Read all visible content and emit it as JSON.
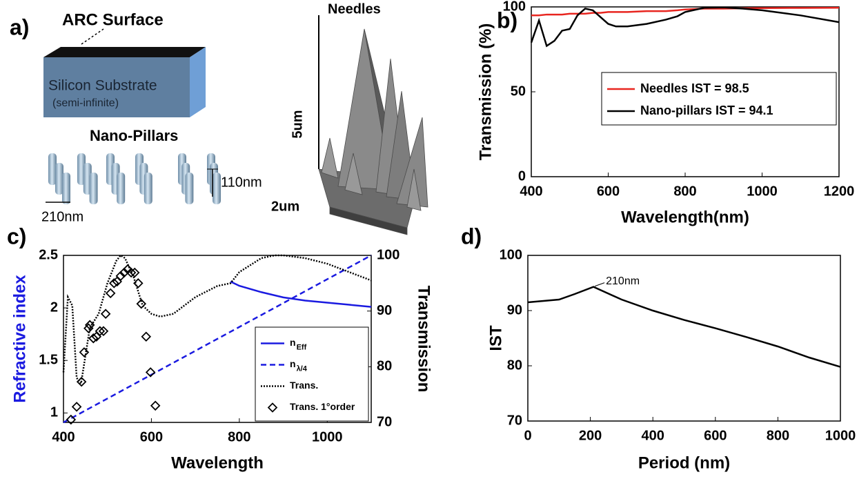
{
  "diagram": {
    "panel_label": "a)",
    "arc": "ARC Surface",
    "substrate": "Silicon Substrate",
    "substrate_note": "(semi-infinite)",
    "pillars": "Nano-Pillars",
    "pillar_height": "110nm",
    "pillar_period": "210nm",
    "needles": "Needles",
    "needle_height": "5um",
    "needle_base": "2um"
  },
  "chart_data": [
    {
      "type": "line",
      "panel_label": "b)",
      "xlabel": "Wavelength(nm)",
      "ylabel": "Transmission (%)",
      "xlim": [
        400,
        1200
      ],
      "xticks": [
        400,
        600,
        800,
        1000,
        1200
      ],
      "ylim": [
        0,
        100
      ],
      "yticks": [
        0,
        50,
        100
      ],
      "legend": "right",
      "x": [
        400,
        420,
        440,
        460,
        480,
        500,
        520,
        540,
        560,
        580,
        600,
        620,
        650,
        700,
        750,
        780,
        800,
        850,
        900,
        950,
        1000,
        1100,
        1200
      ],
      "series": [
        {
          "name": "Needles IST = 98.5",
          "color": "#e8251f",
          "values": [
            95,
            95,
            95.5,
            95.5,
            95.5,
            96,
            96,
            96,
            96.5,
            96.5,
            97,
            97,
            97,
            97.5,
            97.5,
            98,
            98.5,
            99,
            99,
            99.2,
            99.3,
            99.4,
            99.5
          ]
        },
        {
          "name": "Nano-pillars IST = 94.1",
          "color": "#000000",
          "values": [
            79,
            92,
            77,
            80,
            86,
            87,
            95,
            99,
            98,
            94,
            90,
            88.5,
            88.5,
            90,
            92.5,
            94.5,
            97,
            99.5,
            99.7,
            99,
            98,
            95,
            91
          ]
        }
      ]
    },
    {
      "type": "line",
      "panel_label": "c)",
      "xlabel": "Wavelength",
      "ylabel": "Refractive index",
      "ylabel_color": "#1a1ae0",
      "y2label": "Transmission",
      "xlim": [
        400,
        1100
      ],
      "xticks": [
        400,
        600,
        800,
        1000
      ],
      "ylim": [
        0.91,
        2.5
      ],
      "yticks": [
        1,
        1.5,
        2,
        2.5
      ],
      "y2lim": [
        70,
        100
      ],
      "y2ticks": [
        70,
        80,
        90,
        100
      ],
      "legend": "lower right",
      "series": [
        {
          "name": "n",
          "name_sub": "Eff",
          "color": "#1a1ae0",
          "dash": "solid",
          "x": [
            780,
            800,
            850,
            900,
            950,
            1000,
            1050,
            1100
          ],
          "values": [
            2.25,
            2.21,
            2.15,
            2.1,
            2.07,
            2.05,
            2.03,
            2.01
          ]
        },
        {
          "name": "n",
          "name_sub": "λ/4",
          "color": "#1a1ae0",
          "dash": "dashed",
          "x": [
            400,
            1100
          ],
          "values": [
            0.91,
            2.5
          ]
        },
        {
          "name": "Trans.",
          "color": "#000000",
          "dash": "dotted",
          "axis": "y2",
          "x": [
            400,
            410,
            420,
            430,
            440,
            460,
            480,
            500,
            520,
            530,
            540,
            560,
            580,
            600,
            620,
            650,
            700,
            750,
            780,
            800,
            850,
            880,
            900,
            950,
            1000,
            1050,
            1100
          ],
          "values": [
            79,
            92.5,
            91,
            78,
            77,
            87,
            89.5,
            95,
            99,
            100,
            99.5,
            96,
            91,
            89.5,
            89,
            89.5,
            92.5,
            94.5,
            95,
            97,
            99.5,
            100,
            100,
            99.5,
            98.5,
            97,
            95.5
          ]
        },
        {
          "name": "Trans. 1°order",
          "color": "#000000",
          "marker": "diamond",
          "axis": "y2",
          "x": [
            417,
            430,
            441,
            447,
            457,
            460,
            468,
            475,
            483,
            491,
            496,
            507,
            515,
            522,
            530,
            538,
            546,
            554,
            562,
            570,
            577,
            588,
            598,
            609
          ],
          "values": [
            70.5,
            72.8,
            77.3,
            82.6,
            86.9,
            87.5,
            85.1,
            85.4,
            86.4,
            86.4,
            89.5,
            93.2,
            95,
            95.3,
            96.3,
            96.9,
            97.5,
            96.9,
            96.9,
            95,
            91.3,
            85.4,
            79,
            73
          ]
        }
      ]
    },
    {
      "type": "line",
      "panel_label": "d)",
      "xlabel": "Period (nm)",
      "ylabel": "IST",
      "xlim": [
        0,
        1000
      ],
      "xticks": [
        0,
        200,
        400,
        600,
        800,
        1000
      ],
      "ylim": [
        70,
        100
      ],
      "yticks": [
        70,
        80,
        90,
        100
      ],
      "x": [
        0,
        100,
        150,
        210,
        300,
        400,
        500,
        600,
        700,
        800,
        900,
        1000
      ],
      "values": [
        91.5,
        92,
        93,
        94.3,
        92,
        90,
        88.3,
        86.8,
        85.2,
        83.5,
        81.5,
        79.8
      ],
      "color": "#000000",
      "annotation": {
        "text": "210nm",
        "x": 210,
        "y": 94.3
      }
    }
  ]
}
